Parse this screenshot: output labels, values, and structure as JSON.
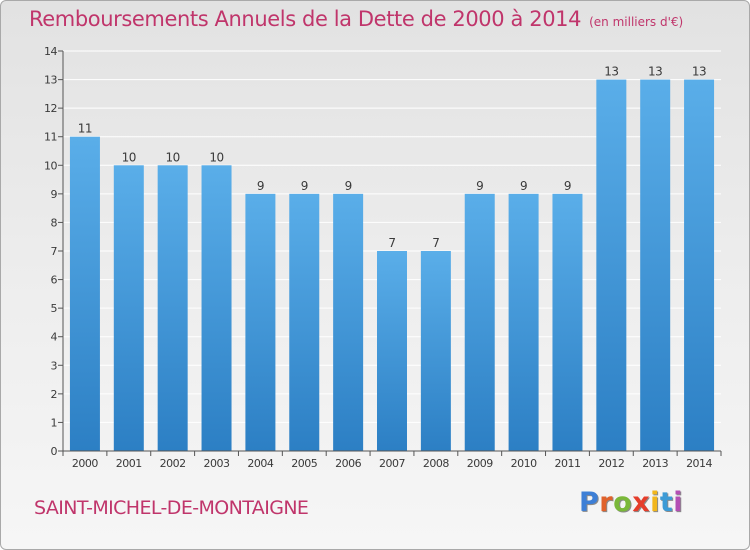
{
  "header": {
    "title": "Remboursements Annuels de la Dette de 2000 à 2014",
    "unit": "(en milliers d'€)"
  },
  "footer": {
    "commune": "SAINT-MICHEL-DE-MONTAIGNE",
    "logo_letters": [
      {
        "char": "P",
        "color": "#3d7fd6"
      },
      {
        "char": "r",
        "color": "#e0622b"
      },
      {
        "char": "o",
        "color": "#7ab839"
      },
      {
        "char": "x",
        "color": "#e53d2b"
      },
      {
        "char": "i",
        "color": "#f2b61c"
      },
      {
        "char": "t",
        "color": "#3d9bd6"
      },
      {
        "char": "i",
        "color": "#b44fb4"
      }
    ]
  },
  "chart_data": {
    "type": "bar",
    "categories": [
      "2000",
      "2001",
      "2002",
      "2003",
      "2004",
      "2005",
      "2006",
      "2007",
      "2008",
      "2009",
      "2010",
      "2011",
      "2012",
      "2013",
      "2014"
    ],
    "values": [
      11,
      10,
      10,
      10,
      9,
      9,
      9,
      7,
      7,
      9,
      9,
      9,
      13,
      13,
      13
    ],
    "data_labels": [
      "11",
      "10",
      "10",
      "10",
      "9",
      "9",
      "9",
      "7",
      "7",
      "9",
      "9",
      "9",
      "13",
      "13",
      "13"
    ],
    "title": "Remboursements Annuels de la Dette de 2000 à 2014",
    "xlabel": "",
    "ylabel": "",
    "ylim": [
      0,
      14
    ],
    "yticks": [
      0,
      1,
      2,
      3,
      4,
      5,
      6,
      7,
      8,
      9,
      10,
      11,
      12,
      13,
      14
    ],
    "ytick_labels": [
      "0",
      "1",
      "2",
      "3",
      "4",
      "5",
      "6",
      "7",
      "8",
      "9",
      "10",
      "11",
      "12",
      "13",
      "14"
    ],
    "grid": true,
    "legend": "none",
    "bar_color_top": "#5aaee9",
    "bar_color_bottom": "#2c7fc4",
    "grid_color": "#ffffff",
    "text_color": "#3a3a3a",
    "title_color": "#c0356b"
  }
}
